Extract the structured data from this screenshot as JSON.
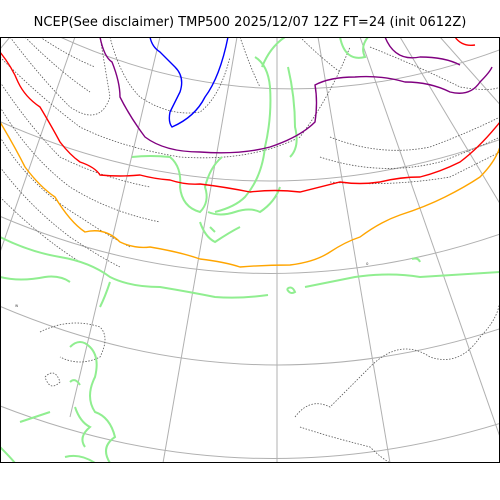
{
  "title": "NCEP(See disclaimer) TMP500 2025/12/07 12Z FT=24 (init 0612Z)",
  "map": {
    "projection": "polar stereographic",
    "grid": "on",
    "coastline_color": "#90ee90",
    "isotherms": [
      {
        "name": "isotherm-blue",
        "color": "#0000ff"
      },
      {
        "name": "isotherm-purple",
        "color": "#800080"
      },
      {
        "name": "isotherm-red",
        "color": "#ff0000"
      },
      {
        "name": "isotherm-orange",
        "color": "#ffa500"
      }
    ]
  }
}
